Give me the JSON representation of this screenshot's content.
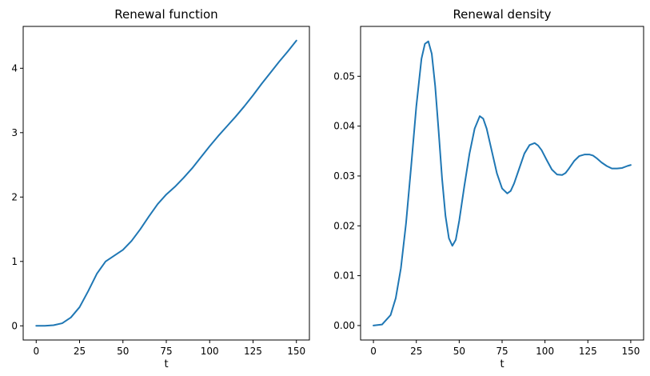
{
  "chart_data": [
    {
      "type": "line",
      "title": "Renewal function",
      "xlabel": "t",
      "ylabel": "",
      "xlim": [
        -7.5,
        157.5
      ],
      "ylim": [
        -0.22,
        4.65
      ],
      "xticks": [
        0,
        25,
        50,
        75,
        100,
        125,
        150
      ],
      "yticks": [
        0,
        1,
        2,
        3,
        4
      ],
      "xtick_labels": [
        "0",
        "25",
        "50",
        "75",
        "100",
        "125",
        "150"
      ],
      "ytick_labels": [
        "0",
        "1",
        "2",
        "3",
        "4"
      ],
      "grid": false,
      "color": "#1f77b4",
      "series": [
        {
          "name": "Renewal function",
          "x": [
            0,
            5,
            10,
            15,
            20,
            25,
            30,
            35,
            40,
            45,
            50,
            55,
            60,
            65,
            70,
            75,
            80,
            85,
            90,
            95,
            100,
            105,
            110,
            115,
            120,
            125,
            130,
            135,
            140,
            145,
            150
          ],
          "y": [
            0,
            0,
            0.01,
            0.04,
            0.13,
            0.29,
            0.54,
            0.81,
            1.0,
            1.09,
            1.18,
            1.32,
            1.5,
            1.7,
            1.89,
            2.04,
            2.16,
            2.3,
            2.45,
            2.62,
            2.79,
            2.95,
            3.1,
            3.25,
            3.41,
            3.58,
            3.76,
            3.93,
            4.1,
            4.26,
            4.43
          ]
        }
      ]
    },
    {
      "type": "line",
      "title": "Renewal density",
      "xlabel": "t",
      "ylabel": "",
      "xlim": [
        -7.5,
        157.5
      ],
      "ylim": [
        -0.0029,
        0.06
      ],
      "xticks": [
        0,
        25,
        50,
        75,
        100,
        125,
        150
      ],
      "yticks": [
        0.0,
        0.01,
        0.02,
        0.03,
        0.04,
        0.05
      ],
      "xtick_labels": [
        "0",
        "25",
        "50",
        "75",
        "100",
        "125",
        "150"
      ],
      "ytick_labels": [
        "0.00",
        "0.01",
        "0.02",
        "0.03",
        "0.04",
        "0.05"
      ],
      "grid": false,
      "color": "#1f77b4",
      "series": [
        {
          "name": "Renewal density",
          "x": [
            0,
            5,
            10,
            13,
            16,
            19,
            22,
            25,
            28,
            30,
            32,
            34,
            36,
            38,
            40,
            42,
            44,
            46,
            48,
            50,
            53,
            56,
            59,
            62,
            64,
            66,
            69,
            72,
            75,
            78,
            80,
            82,
            85,
            88,
            91,
            94,
            96,
            98,
            101,
            104,
            107,
            110,
            112,
            114,
            117,
            120,
            123,
            126,
            128,
            130,
            133,
            136,
            139,
            142,
            145,
            148,
            150
          ],
          "y": [
            0.0,
            0.0002,
            0.0021,
            0.0055,
            0.0115,
            0.0205,
            0.032,
            0.044,
            0.0535,
            0.0565,
            0.057,
            0.0545,
            0.048,
            0.039,
            0.0295,
            0.022,
            0.0175,
            0.016,
            0.0172,
            0.021,
            0.028,
            0.0345,
            0.0395,
            0.042,
            0.0415,
            0.0395,
            0.035,
            0.0305,
            0.0275,
            0.0265,
            0.027,
            0.0285,
            0.0315,
            0.0345,
            0.0362,
            0.0366,
            0.0361,
            0.0352,
            0.0332,
            0.0313,
            0.0303,
            0.0302,
            0.0306,
            0.0315,
            0.033,
            0.034,
            0.0343,
            0.0343,
            0.0341,
            0.0336,
            0.0327,
            0.032,
            0.0315,
            0.0315,
            0.0316,
            0.032,
            0.0322
          ]
        }
      ]
    }
  ]
}
